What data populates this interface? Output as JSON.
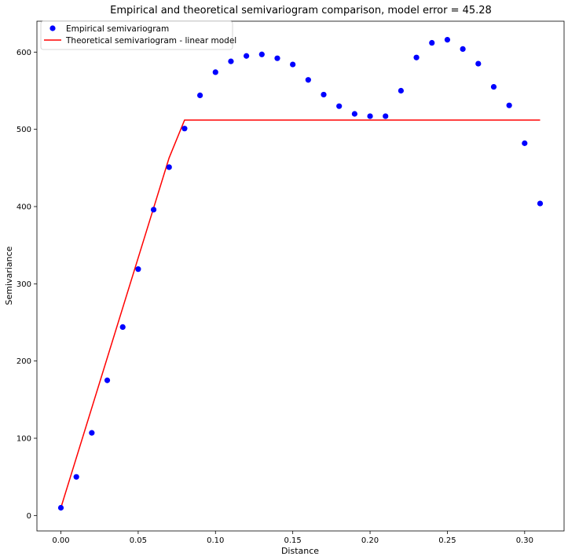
{
  "chart_data": {
    "type": "scatter",
    "title": "Empirical and theoretical semivariogram comparison, model error = 45.28",
    "xlabel": "Distance",
    "ylabel": "Semivariance",
    "xlim": [
      -0.0155,
      0.3255
    ],
    "ylim": [
      -20,
      640
    ],
    "xticks": [
      0.0,
      0.05,
      0.1,
      0.15,
      0.2,
      0.25,
      0.3
    ],
    "xtick_labels": [
      "0.00",
      "0.05",
      "0.10",
      "0.15",
      "0.20",
      "0.25",
      "0.30"
    ],
    "yticks": [
      0,
      100,
      200,
      300,
      400,
      500,
      600
    ],
    "ytick_labels": [
      "0",
      "100",
      "200",
      "300",
      "400",
      "500",
      "600"
    ],
    "grid": false,
    "legend": {
      "position": "top-left"
    },
    "series": [
      {
        "name": "Empirical semivariogram",
        "kind": "scatter",
        "color": "#0000ff",
        "x": [
          0.0,
          0.01,
          0.02,
          0.03,
          0.04,
          0.05,
          0.06,
          0.07,
          0.08,
          0.09,
          0.1,
          0.11,
          0.12,
          0.13,
          0.14,
          0.15,
          0.16,
          0.17,
          0.18,
          0.19,
          0.2,
          0.21,
          0.22,
          0.23,
          0.24,
          0.25,
          0.26,
          0.27,
          0.28,
          0.29,
          0.3,
          0.31
        ],
        "y": [
          10,
          50,
          107,
          175,
          244,
          319,
          396,
          451,
          501,
          544,
          574,
          588,
          595,
          597,
          592,
          584,
          564,
          545,
          530,
          520,
          517,
          517,
          550,
          593,
          612,
          616,
          604,
          585,
          555,
          531,
          482,
          404
        ]
      },
      {
        "name": "Theoretical semivariogram - linear model",
        "kind": "line",
        "color": "#ff0000",
        "x": [
          0.0,
          0.07,
          0.08,
          0.31
        ],
        "y": [
          10,
          463,
          512,
          512
        ]
      }
    ]
  }
}
